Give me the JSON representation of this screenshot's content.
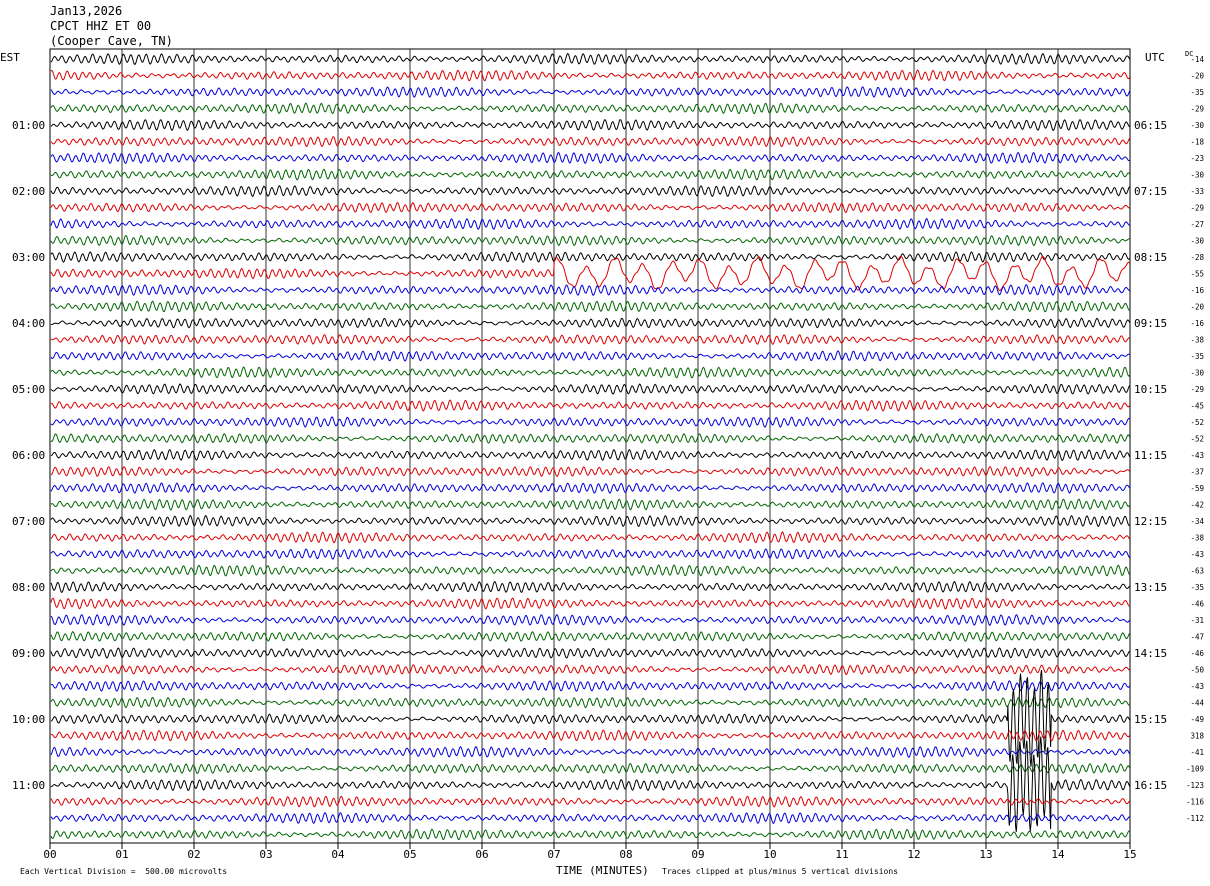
{
  "header": {
    "date": "Jan13,2026",
    "station": "CPCT HHZ ET 00",
    "location": "(Cooper Cave, TN)",
    "left_tz": "EST",
    "right_tz": "UTC",
    "dc_label": "DC"
  },
  "chart_data": {
    "type": "line",
    "title": "CPCT HHZ ET 00",
    "xlabel": "TIME (MINUTES)",
    "x_ticks": [
      "00",
      "01",
      "02",
      "03",
      "04",
      "05",
      "06",
      "07",
      "08",
      "09",
      "10",
      "11",
      "12",
      "13",
      "14",
      "15"
    ],
    "xlim": [
      0,
      15
    ],
    "trace_count": 48,
    "trace_colors": [
      "#000000",
      "#dd0000",
      "#0000dd",
      "#006600"
    ],
    "left_hour_labels": [
      "01:00",
      "02:00",
      "03:00",
      "04:00",
      "05:00",
      "06:00",
      "07:00",
      "08:00",
      "09:00",
      "10:00",
      "11:00"
    ],
    "right_hour_labels": [
      "06:15",
      "07:15",
      "08:15",
      "09:15",
      "10:15",
      "11:15",
      "12:15",
      "13:15",
      "14:15",
      "15:15",
      "16:15"
    ],
    "hour_label_rows": [
      4,
      8,
      12,
      16,
      20,
      24,
      28,
      32,
      36,
      40,
      44
    ],
    "dc_offsets": [
      "-14",
      "-20",
      "-35",
      "-29",
      "-30",
      "-18",
      "-23",
      "-30",
      "-33",
      "-29",
      "-27",
      "-30",
      "-28",
      "-55",
      "-16",
      "-20",
      "-16",
      "-38",
      "-35",
      "-30",
      "-29",
      "-45",
      "-52",
      "-52",
      "-43",
      "-37",
      "-59",
      "-42",
      "-34",
      "-38",
      "-43",
      "-63",
      "-35",
      "-46",
      "-31",
      "-47",
      "-46",
      "-50",
      "-43",
      "-44",
      "-49",
      "318",
      "-41",
      "-109",
      "-123",
      "-116",
      "-112"
    ],
    "events": [
      {
        "trace": 13,
        "start_min": 7.0,
        "end_min": 15.0,
        "kind": "large low-frequency oscillation"
      },
      {
        "trace": 40,
        "start_min": 13.3,
        "end_min": 13.9,
        "kind": "clipped spikes"
      },
      {
        "trace": 44,
        "start_min": 13.3,
        "end_min": 13.9,
        "kind": "clipped spikes"
      }
    ]
  },
  "footer": {
    "vertical_division": "Each Vertical Division =  500.00 microvolts",
    "clip_note": "Traces clipped at plus/minus 5 vertical divisions"
  }
}
